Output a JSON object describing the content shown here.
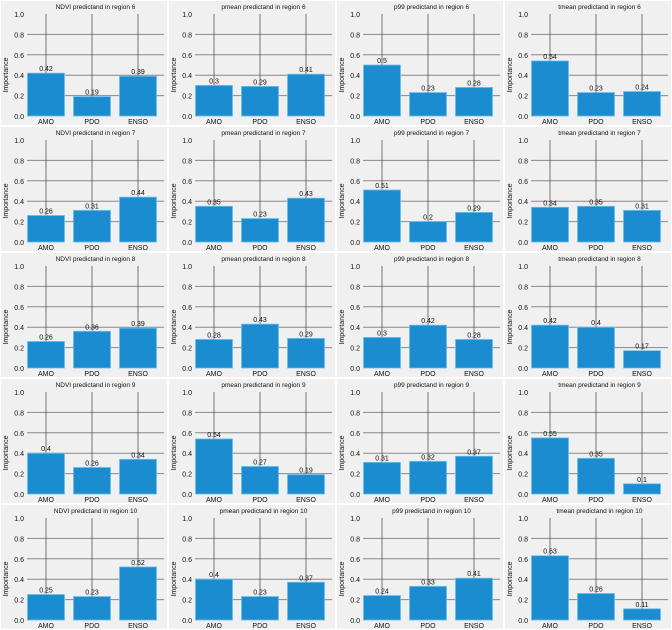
{
  "chart_data": {
    "type": "bar",
    "categories": [
      "AMO",
      "PDO",
      "ENSO"
    ],
    "ylabel": "Importance",
    "xlabel": "",
    "ylim": [
      0,
      1.0
    ],
    "yticks": [
      "0.0",
      "0.2",
      "0.4",
      "0.6",
      "0.8",
      "1.0"
    ],
    "grid": true,
    "bar_color": "#1a8ccf",
    "background_color": "#f0f0f0",
    "panels": [
      {
        "title": "NDVI predictand in region 6",
        "values": [
          0.42,
          0.19,
          0.39
        ]
      },
      {
        "title": "pmean predictand in region 6",
        "values": [
          0.3,
          0.29,
          0.41
        ]
      },
      {
        "title": "p99 predictand in region 6",
        "values": [
          0.5,
          0.23,
          0.28
        ]
      },
      {
        "title": "tmean  predictand in region 6",
        "values": [
          0.54,
          0.23,
          0.24
        ]
      },
      {
        "title": "NDVI predictand in region 7",
        "values": [
          0.26,
          0.31,
          0.44
        ]
      },
      {
        "title": "pmean predictand in region 7",
        "values": [
          0.35,
          0.23,
          0.43
        ]
      },
      {
        "title": "p99 predictand in region 7",
        "values": [
          0.51,
          0.2,
          0.29
        ]
      },
      {
        "title": "tmean  predictand in region 7",
        "values": [
          0.34,
          0.35,
          0.31
        ]
      },
      {
        "title": "NDVI predictand in region 8",
        "values": [
          0.26,
          0.36,
          0.39
        ]
      },
      {
        "title": "pmean predictand in region 8",
        "values": [
          0.28,
          0.43,
          0.29
        ]
      },
      {
        "title": "p99 predictand in region 8",
        "values": [
          0.3,
          0.42,
          0.28
        ]
      },
      {
        "title": "tmean  predictand in region 8",
        "values": [
          0.42,
          0.4,
          0.17
        ]
      },
      {
        "title": "NDVI predictand in region 9",
        "values": [
          0.4,
          0.26,
          0.34
        ]
      },
      {
        "title": "pmean predictand in region 9",
        "values": [
          0.54,
          0.27,
          0.19
        ]
      },
      {
        "title": "p99 predictand in region 9",
        "values": [
          0.31,
          0.32,
          0.37
        ]
      },
      {
        "title": "tmean  predictand in region 9",
        "values": [
          0.55,
          0.35,
          0.1
        ]
      },
      {
        "title": "NDVI predictand in region 10",
        "values": [
          0.25,
          0.23,
          0.52
        ]
      },
      {
        "title": "pmean predictand in region 10",
        "values": [
          0.4,
          0.23,
          0.37
        ]
      },
      {
        "title": "p99 predictand in region 10",
        "values": [
          0.24,
          0.33,
          0.41
        ]
      },
      {
        "title": "tmean  predictand in region 10",
        "values": [
          0.63,
          0.26,
          0.11
        ]
      }
    ]
  }
}
